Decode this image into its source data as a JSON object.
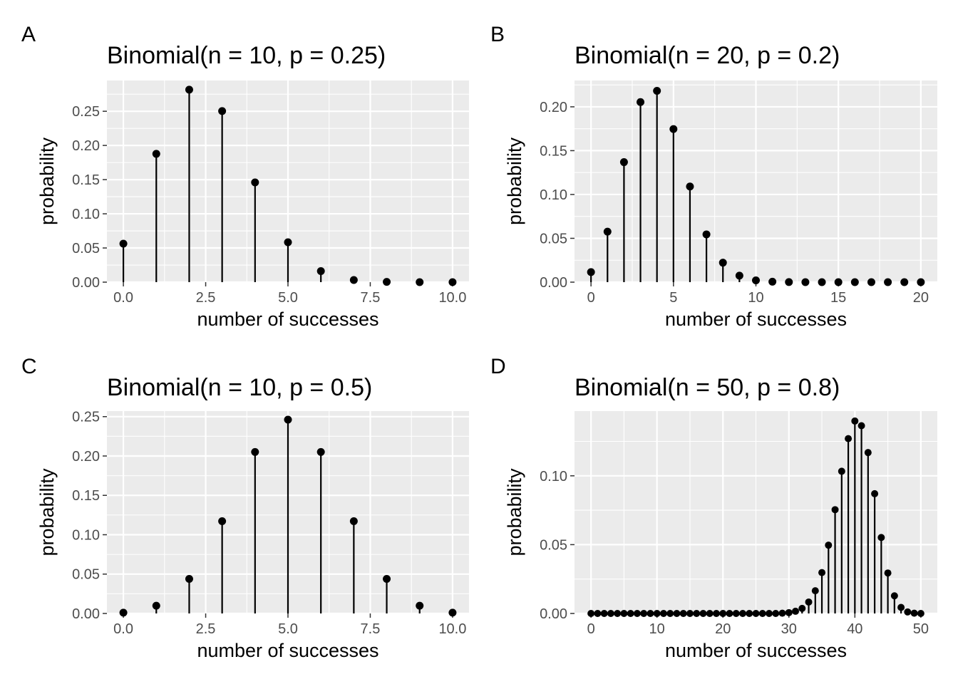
{
  "chart_data": [
    {
      "panel": "A",
      "type": "lollipop",
      "title": "Binomial(n = 10, p = 0.25)",
      "xlabel": "number of successes",
      "ylabel": "probability",
      "x": [
        0,
        1,
        2,
        3,
        4,
        5,
        6,
        7,
        8,
        9,
        10
      ],
      "values": [
        0.0563,
        0.1877,
        0.2816,
        0.2503,
        0.146,
        0.0584,
        0.0162,
        0.0031,
        0.0004,
        0.0,
        0.0
      ],
      "xlim": [
        -0.5,
        10.5
      ],
      "ylim": [
        0,
        0.295
      ],
      "xticks": [
        0,
        2.5,
        5,
        7.5,
        10
      ],
      "xtick_labels": [
        "0.0",
        "2.5",
        "5.0",
        "7.5",
        "10.0"
      ],
      "yticks": [
        0,
        0.05,
        0.1,
        0.15,
        0.2,
        0.25
      ],
      "ytick_labels": [
        "0.00",
        "0.05",
        "0.10",
        "0.15",
        "0.20",
        "0.25"
      ],
      "grid": true
    },
    {
      "panel": "B",
      "type": "lollipop",
      "title": "Binomial(n = 20, p = 0.2)",
      "xlabel": "number of successes",
      "ylabel": "probability",
      "x": [
        0,
        1,
        2,
        3,
        4,
        5,
        6,
        7,
        8,
        9,
        10,
        11,
        12,
        13,
        14,
        15,
        16,
        17,
        18,
        19,
        20
      ],
      "values": [
        0.0115,
        0.0576,
        0.1369,
        0.2054,
        0.2182,
        0.1746,
        0.1091,
        0.0545,
        0.0222,
        0.0074,
        0.002,
        0.0005,
        0.0001,
        0.0,
        0.0,
        0.0,
        0.0,
        0.0,
        0.0,
        0.0,
        0.0
      ],
      "xlim": [
        -1,
        21
      ],
      "ylim": [
        0,
        0.23
      ],
      "xticks": [
        0,
        5,
        10,
        15,
        20
      ],
      "xtick_labels": [
        "0",
        "5",
        "10",
        "15",
        "20"
      ],
      "yticks": [
        0,
        0.05,
        0.1,
        0.15,
        0.2
      ],
      "ytick_labels": [
        "0.00",
        "0.05",
        "0.10",
        "0.15",
        "0.20"
      ],
      "grid": true
    },
    {
      "panel": "C",
      "type": "lollipop",
      "title": "Binomial(n = 10, p = 0.5)",
      "xlabel": "number of successes",
      "ylabel": "probability",
      "x": [
        0,
        1,
        2,
        3,
        4,
        5,
        6,
        7,
        8,
        9,
        10
      ],
      "values": [
        0.001,
        0.0098,
        0.0439,
        0.1172,
        0.2051,
        0.2461,
        0.2051,
        0.1172,
        0.0439,
        0.0098,
        0.001
      ],
      "xlim": [
        -0.5,
        10.5
      ],
      "ylim": [
        0,
        0.257
      ],
      "xticks": [
        0,
        2.5,
        5,
        7.5,
        10
      ],
      "xtick_labels": [
        "0.0",
        "2.5",
        "5.0",
        "7.5",
        "10.0"
      ],
      "yticks": [
        0,
        0.05,
        0.1,
        0.15,
        0.2,
        0.25
      ],
      "ytick_labels": [
        "0.00",
        "0.05",
        "0.10",
        "0.15",
        "0.20",
        "0.25"
      ],
      "grid": true
    },
    {
      "panel": "D",
      "type": "lollipop",
      "title": "Binomial(n = 50, p = 0.8)",
      "xlabel": "number of successes",
      "ylabel": "probability",
      "x": [
        0,
        1,
        2,
        3,
        4,
        5,
        6,
        7,
        8,
        9,
        10,
        11,
        12,
        13,
        14,
        15,
        16,
        17,
        18,
        19,
        20,
        21,
        22,
        23,
        24,
        25,
        26,
        27,
        28,
        29,
        30,
        31,
        32,
        33,
        34,
        35,
        36,
        37,
        38,
        39,
        40,
        41,
        42,
        43,
        44,
        45,
        46,
        47,
        48,
        49,
        50
      ],
      "values": [
        0,
        0,
        0,
        0,
        0,
        0,
        0,
        0,
        0,
        0,
        0,
        0,
        0,
        0,
        0,
        0,
        0,
        0,
        0,
        0,
        0,
        0,
        0,
        0,
        0,
        0,
        0,
        0,
        0,
        0.0002,
        0.0006,
        0.0016,
        0.0037,
        0.0083,
        0.0165,
        0.0297,
        0.0496,
        0.0754,
        0.1033,
        0.127,
        0.1398,
        0.1364,
        0.1169,
        0.087,
        0.0552,
        0.0294,
        0.0128,
        0.0044,
        0.0011,
        0.0002,
        0.0
      ],
      "xlim": [
        -2.5,
        52.5
      ],
      "ylim": [
        0,
        0.147
      ],
      "xticks": [
        0,
        10,
        20,
        30,
        40,
        50
      ],
      "xtick_labels": [
        "0",
        "10",
        "20",
        "30",
        "40",
        "50"
      ],
      "yticks": [
        0,
        0.05,
        0.1
      ],
      "ytick_labels": [
        "0.00",
        "0.05",
        "0.10"
      ],
      "grid": true
    }
  ]
}
